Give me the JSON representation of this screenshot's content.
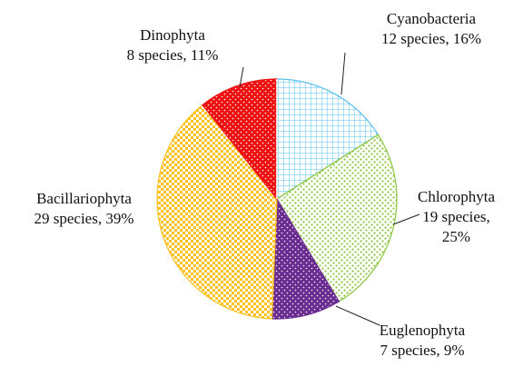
{
  "chart_data": {
    "type": "pie",
    "categories": [
      "Cyanobacteria",
      "Chlorophyta",
      "Euglenophyta",
      "Bacillariophyta",
      "Dinophyta"
    ],
    "values": [
      12,
      19,
      7,
      29,
      8
    ],
    "value_labels": [
      "12 species, 16%",
      "19 species, 25%",
      "7 species, 9%",
      "29 species, 39%",
      "8 species, 11%"
    ],
    "colors": [
      "#5bc0eb",
      "#8cc63f",
      "#6a2c91",
      "#ffc020",
      "#ee1111"
    ]
  }
}
